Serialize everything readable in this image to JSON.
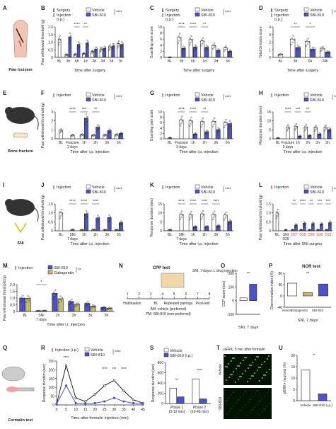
{
  "colors": {
    "vehicle": "#ffffff",
    "drug": "#4a54c8",
    "gabapentin": "#c8b96a",
    "red": "#d63a3a",
    "black": "#222222",
    "green": "#3ecf3e"
  },
  "legend": {
    "surgery": "Surgery",
    "injection": "Injection",
    "injection_ip": "Injection (i.p.)",
    "vehicle": "Vehicle",
    "drug": "SBI-810",
    "gabapentin": "Gabapentin"
  },
  "panels": [
    {
      "id": "A",
      "label": "A",
      "caption": "Paw incision",
      "kind": "illustration",
      "icon": "paw-incision-icon"
    },
    {
      "id": "B",
      "label": "B",
      "kind": "bar",
      "ylabel": "Paw withdrawal threshold (g)",
      "ylim": [
        0,
        2.0
      ],
      "yticks": [
        "0",
        "0.5",
        "1.0",
        "1.5",
        "2.0"
      ],
      "categories": [
        "BL",
        "3h",
        "6h",
        "1d",
        "2d",
        "3d",
        "5d",
        "7d"
      ],
      "xlabel": "Time after surgery",
      "legend": "surgery-injection-ip",
      "vehicle": [
        1.2,
        0.18,
        0.2,
        0.25,
        0.4,
        0.55,
        0.7,
        0.9
      ],
      "drug": [
        null,
        1.35,
        0.85,
        0.95,
        0.55,
        0.6,
        0.75,
        0.85
      ],
      "sig": [
        "****",
        "**"
      ],
      "overall": "****"
    },
    {
      "id": "C",
      "label": "C",
      "kind": "bar",
      "ylabel": "Guarding pain score",
      "ylim": [
        0,
        10
      ],
      "yticks": [
        "0",
        "2",
        "4",
        "6",
        "8",
        "10"
      ],
      "categories": [
        "BL",
        "3h",
        "6h",
        "1d",
        "2d",
        "3d"
      ],
      "xlabel": "Time after surgery",
      "legend": "surgery-injection-ip",
      "vehicle": [
        0,
        6.6,
        5.9,
        5.4,
        3.9,
        3.1
      ],
      "drug": [
        null,
        3.0,
        3.4,
        3.3,
        2.3,
        2.0
      ],
      "sig": [
        "****",
        "****",
        "**"
      ],
      "overall": "****"
    },
    {
      "id": "D",
      "label": "D",
      "kind": "bar",
      "ylabel": "Total Grimace score",
      "ylim": [
        0,
        4
      ],
      "yticks": [
        "0",
        "1",
        "2",
        "3",
        "4"
      ],
      "categories": [
        "BL",
        "3h",
        "6h",
        "24h"
      ],
      "xlabel": "Time after surgery",
      "legend": "surgery-injection-ip",
      "vehicle": [
        0.4,
        2.4,
        2.1,
        1.2
      ],
      "drug": [
        null,
        1.3,
        1.1,
        0.7
      ],
      "sig": [
        "**",
        "*"
      ],
      "overall": "****"
    },
    {
      "id": "E",
      "label": "E",
      "caption": "Bone fracture",
      "kind": "illustration",
      "icon": "mouse-fracture-icon"
    },
    {
      "id": "F",
      "label": "F",
      "kind": "bar",
      "ylabel": "Paw withdrawal threshold (g)",
      "ylim": [
        0,
        3
      ],
      "yticks": [
        "0",
        "1",
        "2",
        "3"
      ],
      "categories": [
        "BL",
        "Fracture 3 days",
        "1h",
        "2h",
        "3h",
        "5h"
      ],
      "xlabel": "Time after i.p. injection",
      "legend": "injection",
      "vehicle": [
        0.95,
        0.4,
        0.45,
        0.4,
        0.42,
        0.45
      ],
      "drug": [
        null,
        null,
        2.3,
        1.3,
        0.9,
        0.6
      ],
      "sig": [
        "****",
        "***",
        "**"
      ],
      "overall": "****"
    },
    {
      "id": "G",
      "label": "G",
      "kind": "bar",
      "ylabel": "Guarding pain scale",
      "ylim": [
        0,
        10
      ],
      "yticks": [
        "0",
        "2",
        "4",
        "6",
        "8",
        "10"
      ],
      "categories": [
        "BL",
        "Fracture 3 days",
        "1h",
        "2h",
        "3h",
        "5h"
      ],
      "xlabel": "Time after i.p. injection",
      "legend": "injection",
      "vehicle": [
        0.3,
        7.0,
        6.7,
        6.4,
        6.5,
        6.0
      ],
      "drug": [
        null,
        null,
        1.8,
        2.6,
        3.4,
        5.6
      ],
      "sig": [
        "****",
        "****",
        "**"
      ],
      "overall": "****"
    },
    {
      "id": "H",
      "label": "H",
      "kind": "bar",
      "ylabel": "Response duration (sec)",
      "ylim": [
        0,
        15
      ],
      "yticks": [
        "0",
        "5",
        "10",
        "15"
      ],
      "categories": [
        "BL",
        "Fracture 3 days",
        "1h",
        "2h",
        "3h",
        "5h"
      ],
      "xlabel": "Time after i.p. injection",
      "legend": "injection",
      "vehicle": [
        0.4,
        6.5,
        7.0,
        6.6,
        6.2,
        6.4
      ],
      "drug": [
        null,
        null,
        1.5,
        1.8,
        2.6,
        5.2
      ],
      "sig": [
        "****",
        "***",
        "**"
      ],
      "overall": "****"
    },
    {
      "id": "I",
      "label": "I",
      "caption": "SNI",
      "kind": "illustration",
      "icon": "mouse-sni-icon"
    },
    {
      "id": "J",
      "label": "J",
      "kind": "bar",
      "ylabel": "Paw withdrawal threshold (g)",
      "ylim": [
        0,
        1.5
      ],
      "yticks": [
        "0",
        "0.5",
        "1.0",
        "1.5"
      ],
      "categories": [
        "BL",
        "SNI 7 days",
        "1h",
        "2h",
        "3h",
        "5h"
      ],
      "xlabel": "Time after i.p. injection",
      "legend": "injection",
      "vehicle": [
        1.0,
        0.06,
        0.05,
        0.06,
        0.05,
        0.05
      ],
      "drug": [
        null,
        null,
        0.95,
        0.72,
        0.74,
        0.45
      ],
      "sig": [
        "****",
        "****",
        "****"
      ],
      "overall": "****"
    },
    {
      "id": "K",
      "label": "K",
      "kind": "bar",
      "ylabel": "Response duration (sec)",
      "ylim": [
        0,
        15
      ],
      "yticks": [
        "0",
        "5",
        "10",
        "15"
      ],
      "categories": [
        "BL",
        "SNI 7 days",
        "1h",
        "2h",
        "3h",
        "5h"
      ],
      "xlabel": "Time after i.p. injection",
      "legend": "injection",
      "vehicle": [
        0.5,
        9.2,
        9.0,
        9.4,
        9.1,
        8.8
      ],
      "drug": [
        null,
        null,
        2.3,
        2.4,
        2.8,
        5.2
      ],
      "sig": [
        "****",
        "****",
        "****",
        "****"
      ],
      "overall": "****"
    },
    {
      "id": "L",
      "label": "L",
      "kind": "bar",
      "ylabel": "Paw withdrawal threshold (g)",
      "ylim": [
        0,
        1.5
      ],
      "yticks": [
        "0",
        "0.5",
        "1.0",
        "1.5"
      ],
      "categories": [
        "BL",
        "SNI D26",
        "D27",
        "D28",
        "D29",
        "D30",
        "D31"
      ],
      "xlabel": "Time after SNI surgery",
      "legend": "injection",
      "vehicle": [
        1.0,
        0.05,
        0.05,
        0.05,
        0.05,
        0.05,
        0.05
      ],
      "drug": [
        null,
        null,
        0.32,
        0.42,
        0.4,
        0.38,
        0.45
      ],
      "sig": [
        "**",
        "****",
        "**",
        "***",
        "***"
      ],
      "overall": "****"
    },
    {
      "id": "M",
      "label": "M",
      "kind": "bar3",
      "ylabel": "Paw withdrawal threshold (g)",
      "ylim": [
        0,
        2.0
      ],
      "yticks": [
        "0",
        "0.5",
        "1.0",
        "1.5",
        "2.0"
      ],
      "categories": [
        "BL",
        "SNI 7 days",
        "1h",
        "2h",
        "3h",
        "5h"
      ],
      "xlabel": "Time after i.t. injection",
      "legend": "injection-gaba",
      "drug": [
        1.0,
        0.05,
        1.35,
        0.75,
        0.6,
        0.3
      ],
      "gabapentin": [
        0.98,
        0.06,
        0.95,
        0.55,
        0.4,
        0.25
      ],
      "sig": [
        "*"
      ],
      "overall": "**"
    },
    {
      "id": "N",
      "label": "N",
      "kind": "timeline",
      "title": "CPP test",
      "caption": "SNI, 7 days i.t. drug injection",
      "ticks": [
        "1",
        "2",
        "3",
        "4",
        "5",
        "6",
        "7",
        "8"
      ],
      "phases": [
        "Habituation",
        "BL",
        "Repeated pairings",
        "Post-test"
      ],
      "notes": [
        "AM: vehicle (preferred)",
        "PM: SBI-810 (non-preferred)"
      ]
    },
    {
      "id": "O",
      "label": "O",
      "kind": "dotbar",
      "ylabel": "CCP score (sec)",
      "ylim": [
        -100,
        200
      ],
      "yticks": [
        "-100",
        "0",
        "100",
        "200"
      ],
      "xlabel": "SNI, 7 days",
      "vehicle": 20,
      "drug": 120,
      "sig": "**"
    },
    {
      "id": "P",
      "label": "P",
      "kind": "dotbar3",
      "title": "NOR test",
      "ylabel": "Discrimination index (%)",
      "ylim": [
        -40,
        80
      ],
      "yticks": [
        "-40",
        "0",
        "40",
        "80"
      ],
      "categories": [
        "Vehicle",
        "Gabapentin",
        "SBI-810"
      ],
      "xlabel": "SNI, 7 days",
      "values": [
        45,
        12,
        42
      ],
      "sig": "**"
    },
    {
      "id": "Q",
      "label": "Q",
      "caption": "Formalin test",
      "kind": "illustration",
      "icon": "formalin-icon"
    },
    {
      "id": "R",
      "label": "R",
      "kind": "line",
      "ylabel": "Response duration (sec)",
      "ylim": [
        0,
        250
      ],
      "yticks": [
        "0",
        "50",
        "100",
        "150",
        "200",
        "250"
      ],
      "x": [
        0,
        5,
        10,
        15,
        20,
        25,
        30,
        35,
        40,
        45
      ],
      "xlabel": "Time after formalin injection (min)",
      "legend": "injection-ip",
      "vehicle": [
        5,
        225,
        40,
        20,
        60,
        110,
        140,
        80,
        30,
        10
      ],
      "drug": [
        5,
        110,
        10,
        8,
        10,
        20,
        40,
        20,
        10,
        5
      ],
      "sig": [
        "****",
        "****",
        "***",
        "****"
      ],
      "overall": "****"
    },
    {
      "id": "S",
      "label": "S",
      "kind": "bar2",
      "ylabel": "Response duration (sec)",
      "ylim": [
        0,
        800
      ],
      "yticks": [
        "0",
        "200",
        "400",
        "600",
        "800"
      ],
      "categories": [
        "Phase 1 (0-10 min)",
        "Phase 2 (10-45 min)"
      ],
      "vehicle": [
        300,
        480
      ],
      "drug": [
        130,
        90
      ],
      "sig": [
        "**",
        "****"
      ],
      "legend": "vehicle-drug-ip"
    },
    {
      "id": "T",
      "label": "T",
      "kind": "micrograph",
      "title": "pERK, 5 min after formalin",
      "rows": [
        "Vehicle",
        "SBI-810"
      ]
    },
    {
      "id": "U",
      "label": "U",
      "kind": "bar2simple",
      "ylabel": "pERK+ neurons (%)",
      "ylim": [
        0,
        20
      ],
      "yticks": [
        "0",
        "5",
        "10",
        "15",
        "20"
      ],
      "categories": [
        "Vehicle",
        "SBI-810 (i.p.)"
      ],
      "values": [
        13.5,
        3.0
      ],
      "sig": "*"
    }
  ]
}
